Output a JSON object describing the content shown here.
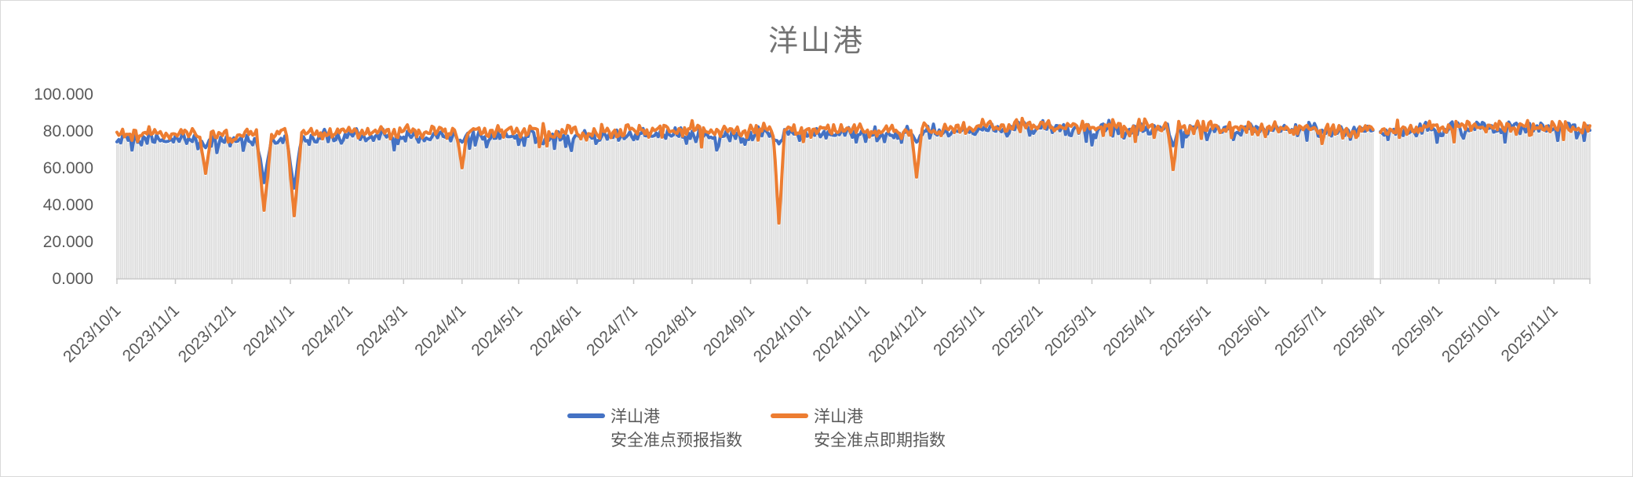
{
  "title": "洋山港",
  "colors": {
    "forecast_line": "#4472C4",
    "spot_line": "#ED7D31",
    "bars": "#DBDBDB",
    "axis_line": "#C8C8C8",
    "tick_text": "#595959",
    "title_text": "#737373"
  },
  "legend": {
    "items": [
      {
        "line1": "洋山港",
        "line2": "安全准点预报指数",
        "color": "#4472C4"
      },
      {
        "line1": "洋山港",
        "line2": "安全准点即期指数",
        "color": "#ED7D31"
      }
    ]
  },
  "chart_data": {
    "type": "line",
    "title": "洋山港",
    "x_start": "2023-10-01",
    "x_end": "2025-11-20",
    "x_unit": "day",
    "ylim": [
      0,
      100
    ],
    "grid": "off",
    "legend_position": "bottom",
    "y_tick_labels": [
      "0.000",
      "20.000",
      "40.000",
      "60.000",
      "80.000",
      "100.000"
    ],
    "x_tick_labels": [
      "2023/10/1",
      "2023/11/1",
      "2023/12/1",
      "2024/1/1",
      "2024/2/1",
      "2024/3/1",
      "2024/4/1",
      "2024/5/1",
      "2024/6/1",
      "2024/7/1",
      "2024/8/1",
      "2024/9/1",
      "2024/10/1",
      "2024/11/1",
      "2024/12/1",
      "2025/1/1",
      "2025/2/1",
      "2025/3/1",
      "2025/4/1",
      "2025/5/1",
      "2025/6/1",
      "2025/7/1",
      "2025/8/1",
      "2025/9/1",
      "2025/10/1",
      "2025/11/1"
    ],
    "series": [
      {
        "name": "洋山港 安全准点预报指数",
        "type": "line",
        "color": "#4472C4",
        "approx_monthly_mean": [
          75.5,
          75.5,
          75,
          76,
          77,
          77,
          77.5,
          77.5,
          77,
          77.5,
          78,
          78,
          79,
          78,
          79,
          81,
          82,
          81.5,
          81,
          81,
          81,
          80.5,
          80,
          81,
          82,
          81.5
        ]
      },
      {
        "name": "洋山港 安全准点即期指数",
        "type": "line",
        "color": "#ED7D31",
        "approx_monthly_mean": [
          78.5,
          78.5,
          78,
          78.5,
          79.5,
          80,
          80,
          80,
          79.5,
          80,
          81,
          80,
          81,
          80,
          80.5,
          82.5,
          83.5,
          82.5,
          82,
          82,
          81.5,
          81,
          81,
          82,
          82.5,
          82
        ]
      },
      {
        "name": "daily-columns",
        "type": "bar",
        "color": "#DBDBDB",
        "derivation": "tracks the lower envelope of the two line series"
      }
    ],
    "dip_events": [
      {
        "date": "2023-11-17",
        "spot_min": 57,
        "forecast_min": 71,
        "half_width_days": 3
      },
      {
        "date": "2023-12-18",
        "spot_min": 37,
        "forecast_min": 52,
        "half_width_days": 4
      },
      {
        "date": "2024-01-03",
        "spot_min": 34,
        "forecast_min": 49,
        "half_width_days": 4
      },
      {
        "date": "2024-04-01",
        "spot_min": 60,
        "forecast_min": 74,
        "half_width_days": 3
      },
      {
        "date": "2024-09-16",
        "spot_min": 30,
        "forecast_min": 73,
        "half_width_days": 3
      },
      {
        "date": "2024-11-28",
        "spot_min": 55,
        "forecast_min": 74,
        "half_width_days": 3
      },
      {
        "date": "2025-04-13",
        "spot_min": 59,
        "forecast_min": 72,
        "half_width_days": 3
      }
    ],
    "data_gap": {
      "start": "2025-07-29",
      "end": "2025-07-31"
    },
    "noise": {
      "seed": 7,
      "shared_amp": 1.6,
      "jitter_amp": 2.5,
      "spike_prob_forecast": 0.1,
      "spike_prob_spot": 0.05,
      "spike_max": 5
    }
  }
}
